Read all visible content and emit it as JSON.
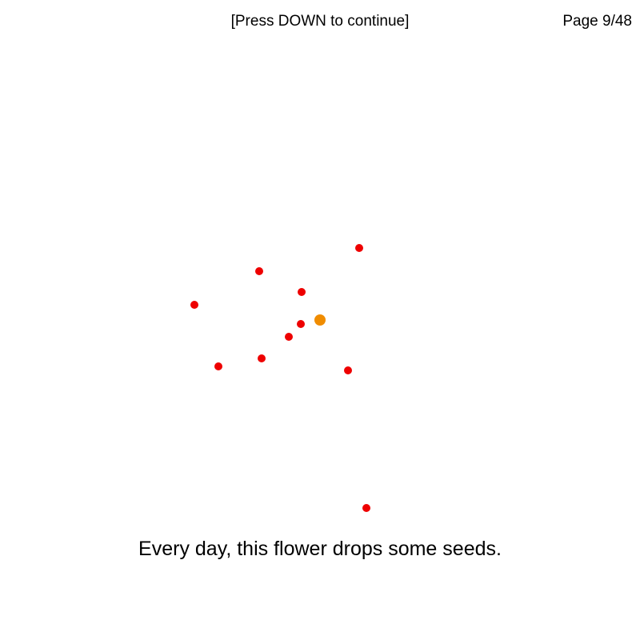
{
  "header": {
    "hint": "[Press DOWN to continue]",
    "page": "Page 9/48"
  },
  "caption": "Every day, this flower drops some seeds.",
  "colors": {
    "flower": "#f08c00",
    "seed": "#ee0000"
  }
}
